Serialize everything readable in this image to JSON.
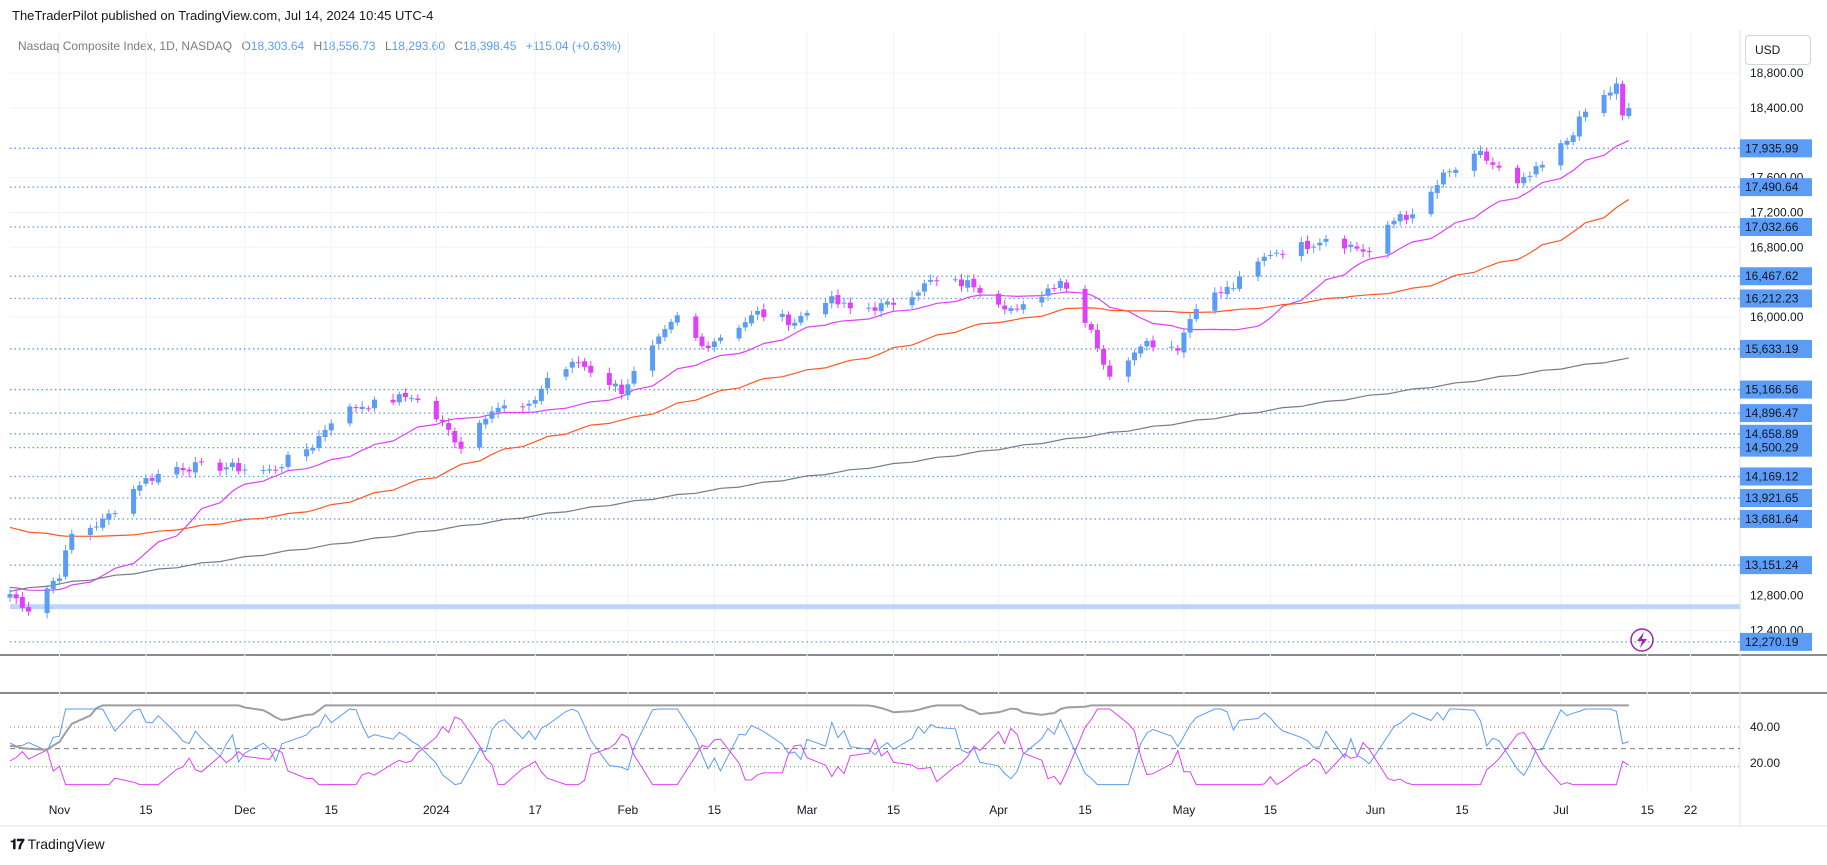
{
  "publisher": "TheTraderPilot published on TradingView.com, Jul 14, 2024 10:45 UTC-4",
  "legend": {
    "name": "Nasdaq Composite Index, 1D, NASDAQ",
    "o_label": "O",
    "o": "18,303.64",
    "h_label": "H",
    "h": "18,556.73",
    "l_label": "L",
    "l": "18,293.60",
    "c_label": "C",
    "c": "18,398.45",
    "change": "+115.04 (+0.63%)"
  },
  "currency": "USD",
  "footer": {
    "brand": "TradingView"
  },
  "colors": {
    "up": "#5b9cf6",
    "down": "#e040fb",
    "ma_fast": "#e040fb",
    "ma_mid": "#ff5722",
    "ma_slow": "#787b86",
    "level_line": "#5b9cf6",
    "label_bg": "#5b9cf6"
  },
  "chart_data": {
    "type": "candlestick",
    "title": "Nasdaq Composite Index, 1D, NASDAQ",
    "y_range": [
      12200,
      18950
    ],
    "y_ticks": [
      {
        "value": 18800,
        "label": "18,800.00"
      },
      {
        "value": 18400,
        "label": "18,400.00"
      },
      {
        "value": 17600,
        "label": "17,600.00"
      },
      {
        "value": 17200,
        "label": "17,200.00"
      },
      {
        "value": 16800,
        "label": "16,800.00"
      },
      {
        "value": 16000,
        "label": "16,000.00"
      },
      {
        "value": 12800,
        "label": "12,800.00"
      },
      {
        "value": 12400,
        "label": "12,400.00"
      }
    ],
    "x_ticks": [
      {
        "date": "2023-11-01",
        "label": "Nov"
      },
      {
        "date": "2023-11-15",
        "label": "15"
      },
      {
        "date": "2023-12-01",
        "label": "Dec"
      },
      {
        "date": "2023-12-15",
        "label": "15"
      },
      {
        "date": "2024-01-01",
        "label": "2024"
      },
      {
        "date": "2024-01-17",
        "label": "17"
      },
      {
        "date": "2024-02-01",
        "label": "Feb"
      },
      {
        "date": "2024-02-15",
        "label": "15"
      },
      {
        "date": "2024-03-01",
        "label": "Mar"
      },
      {
        "date": "2024-03-15",
        "label": "15"
      },
      {
        "date": "2024-04-01",
        "label": "Apr"
      },
      {
        "date": "2024-04-15",
        "label": "15"
      },
      {
        "date": "2024-05-01",
        "label": "May"
      },
      {
        "date": "2024-05-15",
        "label": "15"
      },
      {
        "date": "2024-06-01",
        "label": "Jun"
      },
      {
        "date": "2024-06-15",
        "label": "15"
      },
      {
        "date": "2024-07-01",
        "label": "Jul"
      },
      {
        "date": "2024-07-15",
        "label": "15"
      },
      {
        "date": "2024-07-22",
        "label": "22"
      }
    ],
    "x_range": [
      "2023-10-24",
      "2024-07-30"
    ],
    "levels": [
      {
        "value": 17935.99,
        "label": "17,935.99"
      },
      {
        "value": 17490.64,
        "label": "17,490.64"
      },
      {
        "value": 17032.66,
        "label": "17,032.66"
      },
      {
        "value": 16467.62,
        "label": "16,467.62"
      },
      {
        "value": 16212.23,
        "label": "16,212.23"
      },
      {
        "value": 15633.19,
        "label": "15,633.19"
      },
      {
        "value": 15166.56,
        "label": "15,166.56"
      },
      {
        "value": 14896.47,
        "label": "14,896.47"
      },
      {
        "value": 14658.89,
        "label": "14,658.89"
      },
      {
        "value": 14500.29,
        "label": "14,500.29"
      },
      {
        "value": 14169.12,
        "label": "14,169.12"
      },
      {
        "value": 13921.65,
        "label": "13,921.65"
      },
      {
        "value": 13681.64,
        "label": "13,681.64"
      },
      {
        "value": 13151.24,
        "label": "13,151.24"
      },
      {
        "value": 12270.19,
        "label": "12,270.19"
      }
    ],
    "support_band": 12680,
    "closes": [
      {
        "date": "2023-10-24",
        "close": 12820
      },
      {
        "date": "2023-10-27",
        "close": 12650
      },
      {
        "date": "2023-11-01",
        "close": 13050
      },
      {
        "date": "2023-11-03",
        "close": 13500
      },
      {
        "date": "2023-11-08",
        "close": 13650
      },
      {
        "date": "2023-11-14",
        "close": 14100
      },
      {
        "date": "2023-11-20",
        "close": 14280
      },
      {
        "date": "2023-11-28",
        "close": 14280
      },
      {
        "date": "2023-12-05",
        "close": 14230
      },
      {
        "date": "2023-12-12",
        "close": 14530
      },
      {
        "date": "2023-12-15",
        "close": 14820
      },
      {
        "date": "2023-12-19",
        "close": 14980
      },
      {
        "date": "2023-12-22",
        "close": 15000
      },
      {
        "date": "2023-12-28",
        "close": 15100
      },
      {
        "date": "2024-01-02",
        "close": 14770
      },
      {
        "date": "2024-01-05",
        "close": 14520
      },
      {
        "date": "2024-01-10",
        "close": 14970
      },
      {
        "date": "2024-01-16",
        "close": 14950
      },
      {
        "date": "2024-01-19",
        "close": 15300
      },
      {
        "date": "2024-01-24",
        "close": 15480
      },
      {
        "date": "2024-01-31",
        "close": 15160
      },
      {
        "date": "2024-02-05",
        "close": 15630
      },
      {
        "date": "2024-02-09",
        "close": 15990
      },
      {
        "date": "2024-02-13",
        "close": 15660
      },
      {
        "date": "2024-02-16",
        "close": 15780
      },
      {
        "date": "2024-02-22",
        "close": 16040
      },
      {
        "date": "2024-02-28",
        "close": 15950
      },
      {
        "date": "2024-03-04",
        "close": 16210
      },
      {
        "date": "2024-03-08",
        "close": 16090
      },
      {
        "date": "2024-03-14",
        "close": 16130
      },
      {
        "date": "2024-03-21",
        "close": 16400
      },
      {
        "date": "2024-03-28",
        "close": 16380
      },
      {
        "date": "2024-04-04",
        "close": 16050
      },
      {
        "date": "2024-04-11",
        "close": 16440
      },
      {
        "date": "2024-04-16",
        "close": 15870
      },
      {
        "date": "2024-04-19",
        "close": 15280
      },
      {
        "date": "2024-04-24",
        "close": 15720
      },
      {
        "date": "2024-04-30",
        "close": 15660
      },
      {
        "date": "2024-05-03",
        "close": 16150
      },
      {
        "date": "2024-05-09",
        "close": 16350
      },
      {
        "date": "2024-05-15",
        "close": 16740
      },
      {
        "date": "2024-05-21",
        "close": 16830
      },
      {
        "date": "2024-05-24",
        "close": 16920
      },
      {
        "date": "2024-05-31",
        "close": 16740
      },
      {
        "date": "2024-06-05",
        "close": 17190
      },
      {
        "date": "2024-06-07",
        "close": 17130
      },
      {
        "date": "2024-06-12",
        "close": 17610
      },
      {
        "date": "2024-06-18",
        "close": 17860
      },
      {
        "date": "2024-06-21",
        "close": 17690
      },
      {
        "date": "2024-06-24",
        "close": 17500
      },
      {
        "date": "2024-06-28",
        "close": 17730
      },
      {
        "date": "2024-07-02",
        "close": 18030
      },
      {
        "date": "2024-07-05",
        "close": 18350
      },
      {
        "date": "2024-07-10",
        "close": 18650
      },
      {
        "date": "2024-07-11",
        "close": 18280
      },
      {
        "date": "2024-07-12",
        "close": 18398
      }
    ],
    "oscillator": {
      "ticks": [
        {
          "value": 40,
          "label": "40.00"
        },
        {
          "value": 20,
          "label": "20.00"
        }
      ],
      "range": [
        5,
        55
      ],
      "level_high": 40,
      "level_mid": 28,
      "level_low": 18
    }
  }
}
